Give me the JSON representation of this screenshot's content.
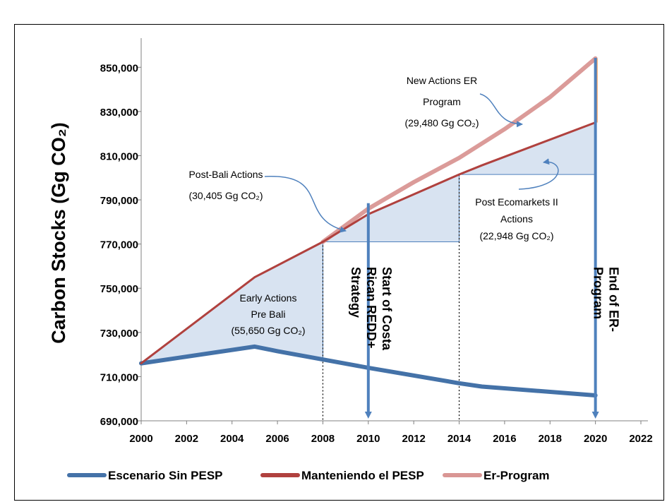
{
  "page": {
    "corner_mark": ""
  },
  "chart_data": {
    "type": "line",
    "title": "",
    "ylabel": "Carbon Stocks (Gg CO₂)",
    "xlabel": "",
    "xlim": [
      2000,
      2022
    ],
    "ylim": [
      690000,
      860000
    ],
    "x_ticks": [
      "2000",
      "2002",
      "2004",
      "2006",
      "2008",
      "2010",
      "2012",
      "2014",
      "2016",
      "2018",
      "2020",
      "2022"
    ],
    "y_ticks": [
      "690,000",
      "710,000",
      "730,000",
      "750,000",
      "770,000",
      "790,000",
      "810,000",
      "830,000",
      "850,000"
    ],
    "series": [
      {
        "name": "Escenario Sin PESP",
        "color": "#4472a8",
        "x": [
          2000,
          2005,
          2006,
          2010,
          2014,
          2015,
          2020
        ],
        "y": [
          716000,
          723600,
          721500,
          714000,
          707000,
          705500,
          701500
        ]
      },
      {
        "name": "Manteniendo el PESP",
        "color": "#b0413e",
        "x": [
          2000,
          2005,
          2008,
          2010,
          2014,
          2015,
          2020
        ],
        "y": [
          716000,
          755000,
          771000,
          783500,
          801500,
          805600,
          825000
        ]
      },
      {
        "name": "Er-Program",
        "color": "#d99694",
        "x": [
          2008,
          2010,
          2012,
          2014,
          2016,
          2018,
          2020
        ],
        "y": [
          771000,
          786000,
          798000,
          809000,
          822000,
          836500,
          854000
        ]
      }
    ],
    "annotations": [
      {
        "id": "early",
        "lines": [
          "Early Actions ",
          "Pre Bali ",
          "(55,650 Gg CO₂) "
        ]
      },
      {
        "id": "post-bali",
        "lines": [
          "Post-Bali Actions ",
          "(30,405 Gg CO₂) "
        ]
      },
      {
        "id": "post-eco",
        "lines": [
          "Post Ecomarkets II ",
          "Actions ",
          "(22,948 Gg CO₂) "
        ]
      },
      {
        "id": "new-actions",
        "lines": [
          "New Actions ER ",
          "Program ",
          "(29,480 Gg CO₂) "
        ]
      }
    ],
    "vertical_markers": [
      {
        "x": 2008,
        "style": "dotted"
      },
      {
        "x": 2010,
        "style": "arrow",
        "label_lines": [
          "Start of Costa",
          "Rican REDD+",
          "Strategy "
        ]
      },
      {
        "x": 2014,
        "style": "dotted"
      },
      {
        "x": 2020,
        "style": "arrow",
        "label_lines": [
          "End of ER-",
          "Program"
        ]
      }
    ],
    "legend": {
      "position": "bottom"
    },
    "grid": false
  }
}
